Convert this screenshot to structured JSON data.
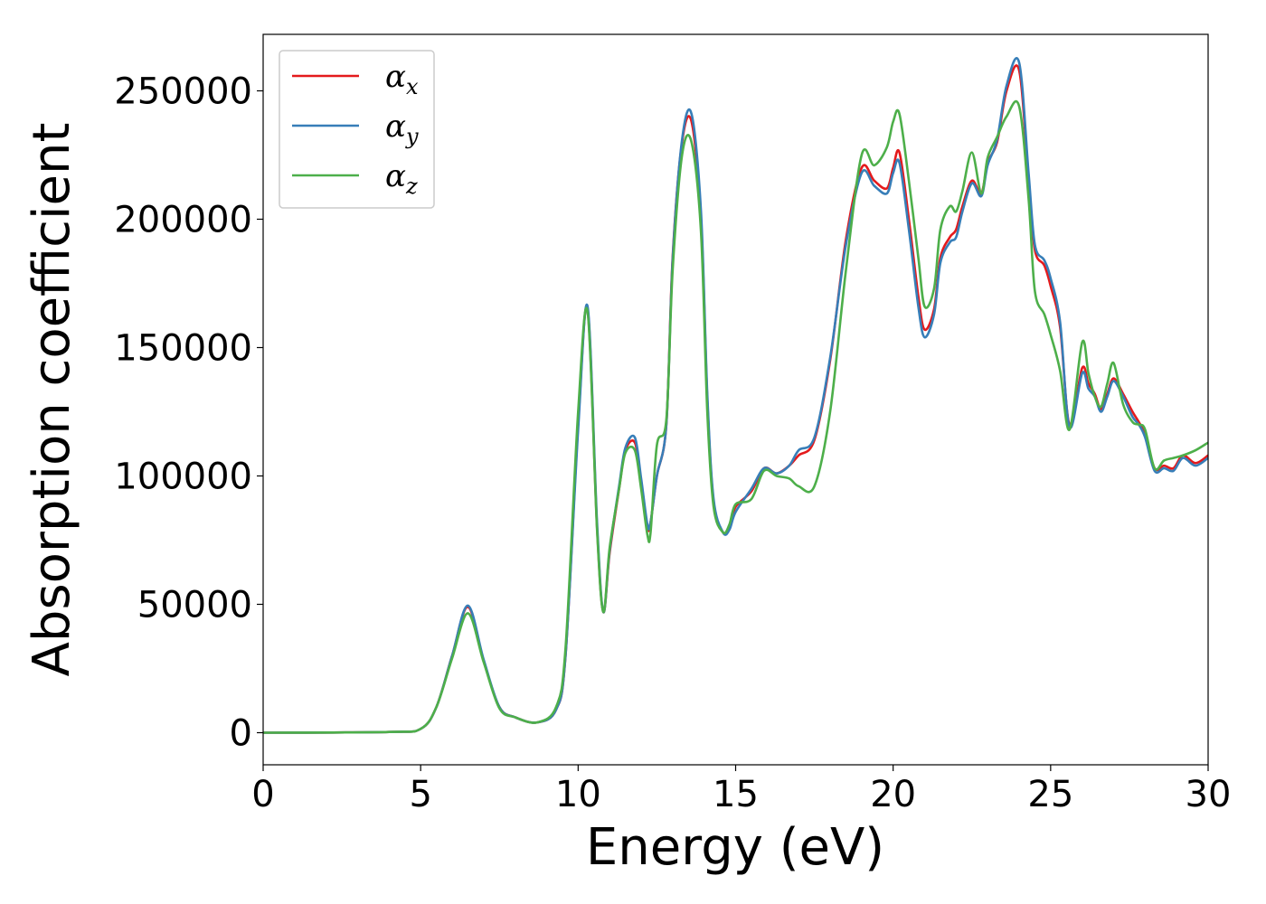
{
  "chart_data": {
    "type": "line",
    "title": "",
    "xlabel": "Energy (eV)",
    "ylabel": "Absorption coefficient",
    "xlim": [
      0,
      30
    ],
    "ylim": [
      -12500,
      272000
    ],
    "xticks": [
      0,
      5,
      10,
      15,
      20,
      25,
      30
    ],
    "yticks": [
      0,
      50000,
      100000,
      150000,
      200000,
      250000
    ],
    "grid": false,
    "legend_position": "top-left",
    "series": [
      {
        "name": "αx",
        "label_base": "α",
        "label_sub": "x",
        "color": "#e41a1c",
        "x": [
          0,
          4,
          5,
          5.5,
          6,
          6.5,
          7,
          7.5,
          8,
          8.7,
          9.3,
          9.6,
          10,
          10.3,
          10.6,
          10.8,
          11,
          11.3,
          11.5,
          11.8,
          12,
          12.2,
          12.3,
          12.5,
          12.8,
          13,
          13.3,
          13.6,
          13.9,
          14.1,
          14.3,
          14.6,
          14.8,
          15,
          15.5,
          15.9,
          16.3,
          16.7,
          17,
          17.5,
          18,
          18.5,
          19,
          19.4,
          19.8,
          20,
          20.2,
          20.5,
          20.8,
          21,
          21.3,
          21.5,
          21.8,
          22,
          22.2,
          22.5,
          22.8,
          23,
          23.3,
          23.6,
          24,
          24.3,
          24.5,
          24.8,
          25,
          25.3,
          25.6,
          26,
          26.2,
          26.4,
          26.6,
          26.8,
          27,
          27.3,
          27.6,
          27.8,
          28,
          28.3,
          28.6,
          28.9,
          29.2,
          29.6,
          30
        ],
        "values": [
          0,
          300,
          1500,
          10000,
          30000,
          49000,
          28000,
          10000,
          6000,
          4000,
          9000,
          30000,
          120000,
          165000,
          80000,
          47000,
          70000,
          95000,
          110000,
          113000,
          98000,
          80000,
          82000,
          100000,
          120000,
          185000,
          230000,
          238000,
          200000,
          130000,
          90000,
          78000,
          80000,
          88000,
          94000,
          103000,
          101000,
          104000,
          108000,
          114000,
          145000,
          192000,
          220000,
          215000,
          212000,
          220000,
          226000,
          200000,
          170000,
          157000,
          165000,
          185000,
          193000,
          196000,
          205000,
          215000,
          210000,
          222000,
          230000,
          250000,
          258000,
          215000,
          188000,
          182000,
          174000,
          158000,
          120000,
          142000,
          136000,
          132000,
          126000,
          132000,
          138000,
          132000,
          125000,
          121000,
          116000,
          103000,
          104000,
          103000,
          108000,
          105000,
          108000
        ]
      },
      {
        "name": "αy",
        "label_base": "α",
        "label_sub": "y",
        "color": "#377eb8",
        "x": [
          0,
          4,
          5,
          5.5,
          6,
          6.5,
          7,
          7.5,
          8,
          8.7,
          9.3,
          9.6,
          10,
          10.3,
          10.6,
          10.8,
          11,
          11.3,
          11.5,
          11.8,
          12,
          12.2,
          12.3,
          12.5,
          12.8,
          13,
          13.3,
          13.6,
          13.9,
          14.1,
          14.3,
          14.6,
          14.8,
          15,
          15.5,
          15.9,
          16.3,
          16.7,
          17,
          17.5,
          18,
          18.5,
          19,
          19.4,
          19.8,
          20,
          20.2,
          20.5,
          20.8,
          21,
          21.3,
          21.5,
          21.8,
          22,
          22.2,
          22.5,
          22.8,
          23,
          23.3,
          23.6,
          24,
          24.3,
          24.5,
          24.8,
          25,
          25.3,
          25.6,
          26,
          26.2,
          26.4,
          26.6,
          26.8,
          27,
          27.3,
          27.6,
          27.8,
          28,
          28.3,
          28.6,
          28.9,
          29.2,
          29.6,
          30
        ],
        "values": [
          0,
          300,
          1500,
          10000,
          30000,
          49500,
          28500,
          10000,
          6000,
          4000,
          9000,
          30000,
          118000,
          166000,
          82000,
          47000,
          71000,
          96000,
          111000,
          115000,
          99000,
          81000,
          82000,
          100000,
          120000,
          184000,
          231000,
          241000,
          203000,
          132000,
          91000,
          78000,
          79000,
          86000,
          95000,
          103000,
          101000,
          104000,
          110000,
          115000,
          146000,
          190000,
          218000,
          213000,
          210000,
          218000,
          222000,
          196000,
          166000,
          154000,
          163000,
          183000,
          191000,
          193000,
          203000,
          214000,
          209000,
          221000,
          231000,
          252000,
          261000,
          218000,
          190000,
          184000,
          177000,
          160000,
          119000,
          140000,
          134000,
          131000,
          125000,
          131000,
          137000,
          131000,
          123000,
          120000,
          115000,
          102000,
          103000,
          102000,
          107000,
          104000,
          107000
        ]
      },
      {
        "name": "αz",
        "label_base": "α",
        "label_sub": "z",
        "color": "#4daf4a",
        "x": [
          0,
          4,
          5,
          5.5,
          6,
          6.5,
          7,
          7.5,
          8,
          8.7,
          9.3,
          9.6,
          10,
          10.3,
          10.6,
          10.8,
          11,
          11.3,
          11.5,
          11.8,
          12,
          12.2,
          12.3,
          12.5,
          12.8,
          13,
          13.3,
          13.6,
          13.9,
          14.1,
          14.3,
          14.6,
          14.8,
          15,
          15.5,
          15.9,
          16.3,
          16.7,
          17,
          17.5,
          18,
          18.5,
          19,
          19.4,
          19.8,
          20,
          20.2,
          20.5,
          20.8,
          21,
          21.3,
          21.5,
          21.8,
          22,
          22.2,
          22.5,
          22.8,
          23,
          23.3,
          23.6,
          24,
          24.3,
          24.5,
          24.8,
          25,
          25.3,
          25.6,
          26,
          26.2,
          26.4,
          26.6,
          26.8,
          27,
          27.3,
          27.6,
          27.8,
          28,
          28.3,
          28.6,
          28.9,
          29.2,
          29.6,
          30
        ],
        "values": [
          0,
          300,
          1500,
          10000,
          29000,
          46500,
          27500,
          9500,
          6000,
          4000,
          10000,
          33000,
          125000,
          164000,
          79000,
          47000,
          72000,
          95000,
          109000,
          110000,
          95000,
          77000,
          78000,
          112000,
          122000,
          180000,
          225000,
          230000,
          195000,
          125000,
          88000,
          78000,
          81000,
          89000,
          91000,
          102000,
          100000,
          99000,
          96000,
          96000,
          125000,
          180000,
          225000,
          221000,
          228000,
          238000,
          241000,
          215000,
          185000,
          166000,
          173000,
          196000,
          205000,
          203000,
          211000,
          226000,
          210000,
          224000,
          232000,
          240000,
          244000,
          208000,
          172000,
          163000,
          155000,
          141000,
          118000,
          152000,
          140000,
          131000,
          127000,
          136000,
          144000,
          128000,
          121000,
          120000,
          118000,
          103000,
          106000,
          107000,
          108000,
          110000,
          113000
        ]
      }
    ]
  }
}
